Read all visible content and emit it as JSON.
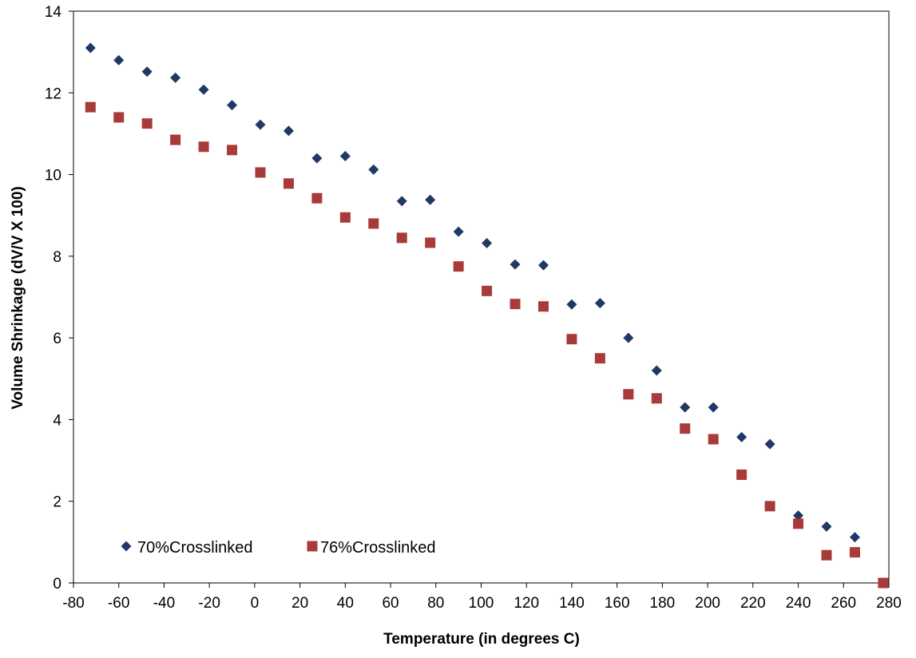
{
  "chart_data": {
    "type": "scatter",
    "title": "",
    "xlabel": "Temperature (in degrees C)",
    "ylabel": "Volume Shrinkage (dV/V X 100)",
    "xlim": [
      -80,
      280
    ],
    "ylim": [
      0,
      14
    ],
    "x_ticks": [
      -80,
      -60,
      -40,
      -20,
      0,
      20,
      40,
      60,
      80,
      100,
      120,
      140,
      160,
      180,
      200,
      220,
      240,
      260,
      280
    ],
    "y_ticks": [
      0,
      2,
      4,
      6,
      8,
      10,
      12,
      14
    ],
    "grid": false,
    "legend_placement": "bottom-left",
    "series": [
      {
        "name": "70%Crosslinked",
        "color": "#1f3864",
        "marker": "diamond",
        "points": [
          [
            -72.5,
            13.1
          ],
          [
            -60,
            12.8
          ],
          [
            -47.5,
            12.52
          ],
          [
            -35,
            12.37
          ],
          [
            -22.5,
            12.08
          ],
          [
            -10,
            11.7
          ],
          [
            2.5,
            11.22
          ],
          [
            15,
            11.07
          ],
          [
            27.5,
            10.4
          ],
          [
            40,
            10.45
          ],
          [
            52.5,
            10.12
          ],
          [
            65,
            9.35
          ],
          [
            77.5,
            9.38
          ],
          [
            90,
            8.6
          ],
          [
            102.5,
            8.32
          ],
          [
            115,
            7.8
          ],
          [
            127.5,
            7.78
          ],
          [
            140,
            6.82
          ],
          [
            152.5,
            6.85
          ],
          [
            165,
            6.0
          ],
          [
            177.5,
            5.2
          ],
          [
            190,
            4.3
          ],
          [
            202.5,
            4.3
          ],
          [
            215,
            3.57
          ],
          [
            227.5,
            3.4
          ],
          [
            240,
            1.65
          ],
          [
            252.5,
            1.38
          ],
          [
            265,
            1.12
          ]
        ]
      },
      {
        "name": "76%Crosslinked",
        "color": "#a83a3a",
        "marker": "square",
        "points": [
          [
            -72.5,
            11.65
          ],
          [
            -60,
            11.4
          ],
          [
            -47.5,
            11.25
          ],
          [
            -35,
            10.85
          ],
          [
            -22.5,
            10.68
          ],
          [
            -10,
            10.6
          ],
          [
            2.5,
            10.05
          ],
          [
            15,
            9.78
          ],
          [
            27.5,
            9.42
          ],
          [
            40,
            8.95
          ],
          [
            52.5,
            8.8
          ],
          [
            65,
            8.45
          ],
          [
            77.5,
            8.33
          ],
          [
            90,
            7.75
          ],
          [
            102.5,
            7.15
          ],
          [
            115,
            6.83
          ],
          [
            127.5,
            6.77
          ],
          [
            140,
            5.97
          ],
          [
            152.5,
            5.5
          ],
          [
            165,
            4.62
          ],
          [
            177.5,
            4.52
          ],
          [
            190,
            3.78
          ],
          [
            202.5,
            3.52
          ],
          [
            215,
            2.65
          ],
          [
            227.5,
            1.88
          ],
          [
            240,
            1.45
          ],
          [
            252.5,
            0.68
          ],
          [
            265,
            0.75
          ],
          [
            277.5,
            0.0
          ]
        ]
      }
    ]
  }
}
